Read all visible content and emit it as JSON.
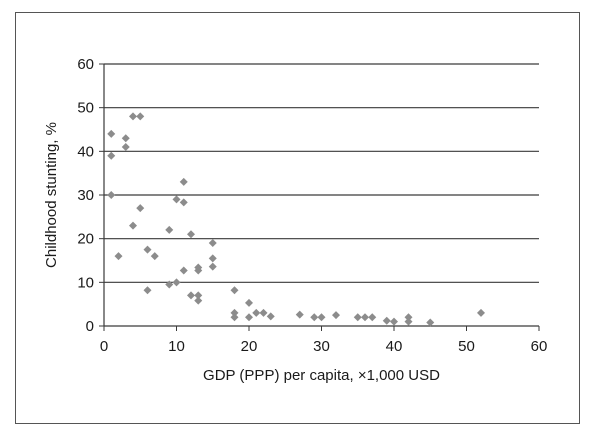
{
  "chart_data": {
    "type": "scatter",
    "title": "",
    "xlabel": "GDP (PPP) per capita, ×1,000 USD",
    "ylabel": "Childhood stunting, %",
    "xlim": [
      0,
      60
    ],
    "ylim": [
      0,
      60
    ],
    "x_ticks": [
      0,
      10,
      20,
      30,
      40,
      50,
      60
    ],
    "y_ticks": [
      0,
      10,
      20,
      30,
      40,
      50,
      60
    ],
    "grid": "horizontal",
    "marker": "diamond",
    "colors": {
      "marker": "#8c8c8c",
      "grid": "#3a3a3a",
      "axis": "#3a3a3a",
      "frame": "#555555"
    },
    "series": [
      {
        "x": [
          1,
          1,
          1,
          2,
          3,
          3,
          4,
          4,
          5,
          5,
          6,
          6,
          7,
          9,
          9,
          10,
          10,
          11,
          11,
          11,
          12,
          12,
          13,
          13,
          13,
          13,
          15,
          15,
          15,
          18,
          18,
          18,
          20,
          20,
          21,
          22,
          23,
          27,
          29,
          30,
          32,
          35,
          36,
          37,
          39,
          40,
          42,
          42,
          45,
          52
        ],
        "y": [
          44,
          39,
          30,
          16,
          43,
          41,
          48,
          23,
          48,
          27,
          17.5,
          8.2,
          16,
          22,
          9.5,
          29,
          10,
          33,
          28.3,
          12.7,
          21,
          7,
          13.4,
          12.7,
          7,
          5.8,
          19,
          15.5,
          13.6,
          8.2,
          3,
          2,
          5.3,
          2,
          3,
          3,
          2.2,
          2.6,
          2,
          2,
          2.5,
          2,
          2,
          2,
          1.2,
          1,
          2,
          1,
          0.8,
          3
        ]
      }
    ]
  }
}
